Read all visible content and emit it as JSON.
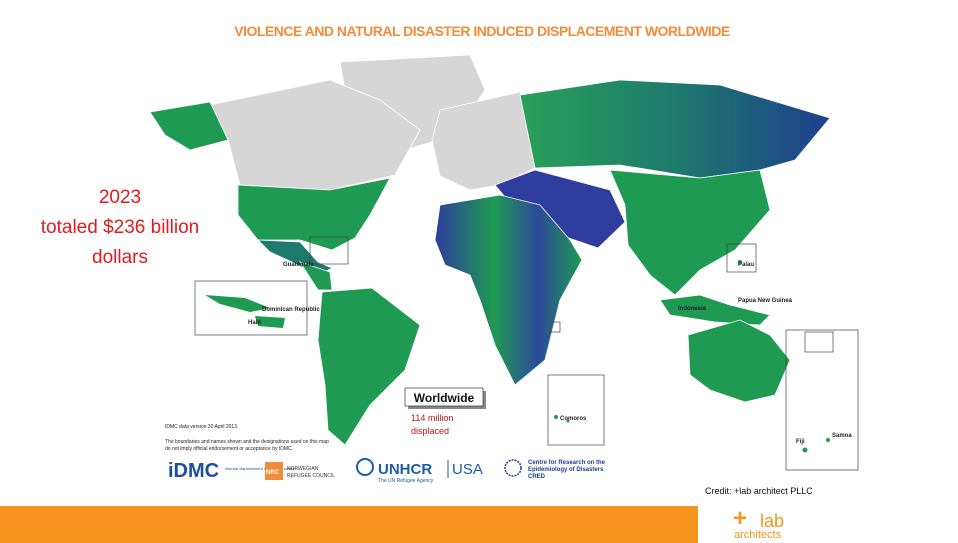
{
  "title": "VIOLENCE AND NATURAL DISASTER  INDUCED DISPLACEMENT  WORLDWIDE",
  "cost": {
    "year": "2023",
    "line1": "totaled $236 billion",
    "line2": "dollars"
  },
  "worldwide": {
    "heading": "Worldwide",
    "line1": "114 million",
    "line2": "displaced"
  },
  "map_labels": {
    "guatemala": "Guatemala",
    "dominican_republic": "Dominican Republic",
    "haiti": "Haiti",
    "palau": "Palau",
    "papua_new_guinea": "Papua New Guinea",
    "indonesia": "Indonesia",
    "comoros": "Comoros",
    "fiji": "Fiji",
    "samoa": "Samoa"
  },
  "notes": {
    "version": "IDMC data version 30 April 2013",
    "disclaimer1": "The boundaries and names shown and the designations used on this map",
    "disclaimer2": "do not imply official endorsement or acceptance by IDMC."
  },
  "logos": {
    "idmc": "iDMC",
    "idmc_sub": "internal displacement monitoring centre",
    "nrc": "NRC",
    "nrc_sub1": "NORWEGIAN",
    "nrc_sub2": "REFUGEE COUNCIL",
    "unhcr": "UNHCR",
    "unhcr_country": "USA",
    "unhcr_sub": "The UN Refugee Agency",
    "cred1": "Centre for Research on the",
    "cred2": "Epidemiology of Disasters",
    "cred3": "CRED"
  },
  "credit": "Credit: +lab architect PLLC",
  "brand": {
    "mark": "+",
    "name": "lab",
    "sub": "architects"
  }
}
